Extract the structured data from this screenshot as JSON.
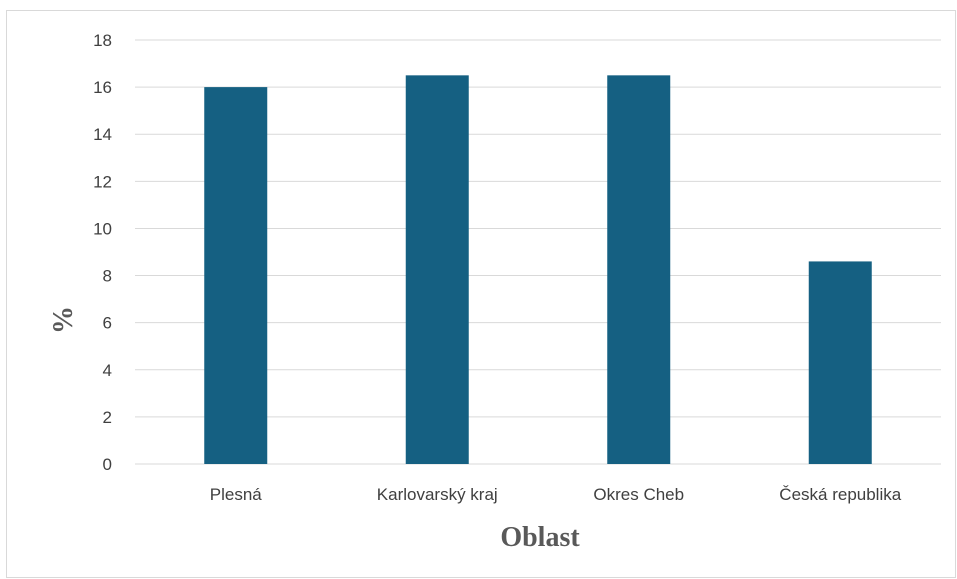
{
  "chart_data": {
    "type": "bar",
    "title": "",
    "xlabel": "Oblast",
    "ylabel": "%",
    "categories": [
      "Plesná",
      "Karlovarský kraj",
      "Okres Cheb",
      "Česká republika"
    ],
    "values": [
      16.0,
      16.5,
      16.5,
      8.6
    ],
    "ylim": [
      0,
      18
    ],
    "yticks": [
      "0",
      "2",
      "4",
      "6",
      "8",
      "10",
      "12",
      "14",
      "16",
      "18"
    ],
    "grid": true,
    "legend": "none",
    "bar_color": "#156082"
  }
}
